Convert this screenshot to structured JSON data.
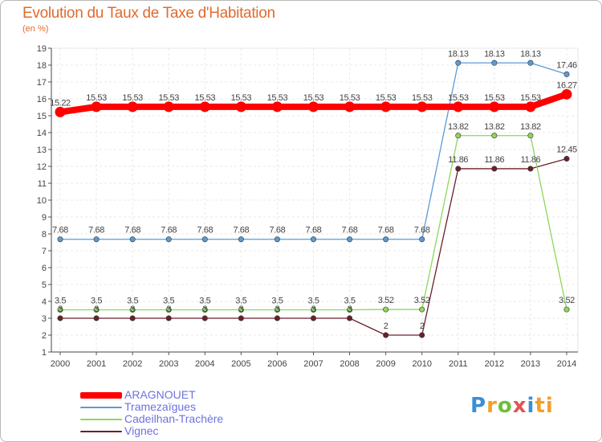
{
  "chart_data": {
    "type": "line",
    "title": "Evolution du Taux de Taxe d'Habitation",
    "subtitle": "(en %)",
    "x": [
      2000,
      2001,
      2002,
      2003,
      2004,
      2005,
      2006,
      2007,
      2008,
      2009,
      2010,
      2011,
      2012,
      2013,
      2014
    ],
    "ylim": [
      1,
      19
    ],
    "yticks": [
      1,
      2,
      3,
      4,
      5,
      6,
      7,
      8,
      9,
      10,
      11,
      12,
      13,
      14,
      15,
      16,
      17,
      18,
      19
    ],
    "grid": true,
    "legend_position": "bottom-left",
    "series": [
      {
        "name": "ARAGNOUET",
        "color": "#ff0000",
        "values": [
          15.22,
          15.53,
          15.53,
          15.53,
          15.53,
          15.53,
          15.53,
          15.53,
          15.53,
          15.53,
          15.53,
          15.53,
          15.53,
          15.53,
          16.27
        ],
        "labels": [
          "15.22",
          "15.53",
          "15.53",
          "15.53",
          "15.53",
          "15.53",
          "15.53",
          "15.53",
          "15.53",
          "15.53",
          "15.53",
          "15.53",
          "15.53",
          "15.53",
          "16.27"
        ]
      },
      {
        "name": "Tramezaïgues",
        "color": "#5b9bd5",
        "values": [
          7.68,
          7.68,
          7.68,
          7.68,
          7.68,
          7.68,
          7.68,
          7.68,
          7.68,
          7.68,
          7.68,
          18.13,
          18.13,
          18.13,
          17.46
        ],
        "labels": [
          "7.68",
          "7.68",
          "7.68",
          "7.68",
          "7.68",
          "7.68",
          "7.68",
          "7.68",
          "7.68",
          "7.68",
          "7.68",
          "18.13",
          "18.13",
          "18.13",
          "17.46"
        ]
      },
      {
        "name": "Cadeilhan-Trachère",
        "color": "#8fd65b",
        "values": [
          3.5,
          3.5,
          3.5,
          3.5,
          3.5,
          3.5,
          3.5,
          3.5,
          3.5,
          3.52,
          3.52,
          13.82,
          13.82,
          13.82,
          3.52
        ],
        "labels": [
          "3.5",
          "3.5",
          "3.5",
          "3.5",
          "3.5",
          "3.5",
          "3.5",
          "3.5",
          "3.5",
          "3.52",
          "3.52",
          "13.82",
          "13.82",
          "13.82",
          "3.52"
        ]
      },
      {
        "name": "Vignec",
        "color": "#6b1f2a",
        "values": [
          3,
          3,
          3,
          3,
          3,
          3,
          3,
          3,
          3,
          2,
          2,
          11.86,
          11.86,
          11.86,
          12.45
        ],
        "labels": [
          "3",
          "3",
          "3",
          "3",
          "3",
          "3",
          "3",
          "3",
          "3",
          "2",
          "2",
          "11.86",
          "11.86",
          "11.86",
          "12.45"
        ]
      }
    ]
  },
  "logo": {
    "text": "Proxiti",
    "letters": [
      "P",
      "r",
      "o",
      "x",
      "i",
      "ti"
    ]
  }
}
